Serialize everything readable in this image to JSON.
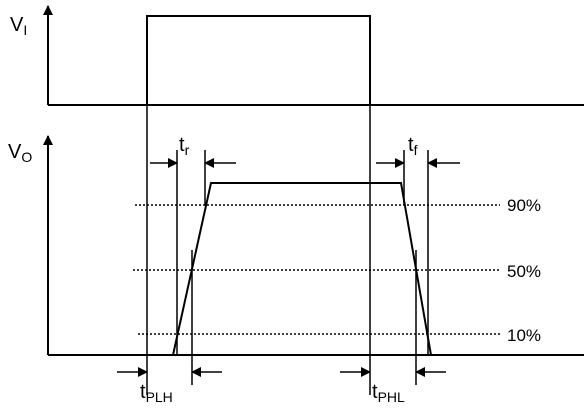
{
  "input_axis": {
    "label": "V",
    "subscript": "I"
  },
  "output_axis": {
    "label": "V",
    "subscript": "O"
  },
  "rise": {
    "label": "t",
    "subscript": "r"
  },
  "fall": {
    "label": "t",
    "subscript": "f"
  },
  "prop_low_high": {
    "label": "t",
    "subscript": "PLH"
  },
  "prop_high_low": {
    "label": "t",
    "subscript": "PHL"
  },
  "levels": [
    {
      "label": "90%"
    },
    {
      "label": "50%"
    },
    {
      "label": "10%"
    }
  ],
  "colors": {
    "line": "#000000",
    "background": "#ffffff"
  }
}
